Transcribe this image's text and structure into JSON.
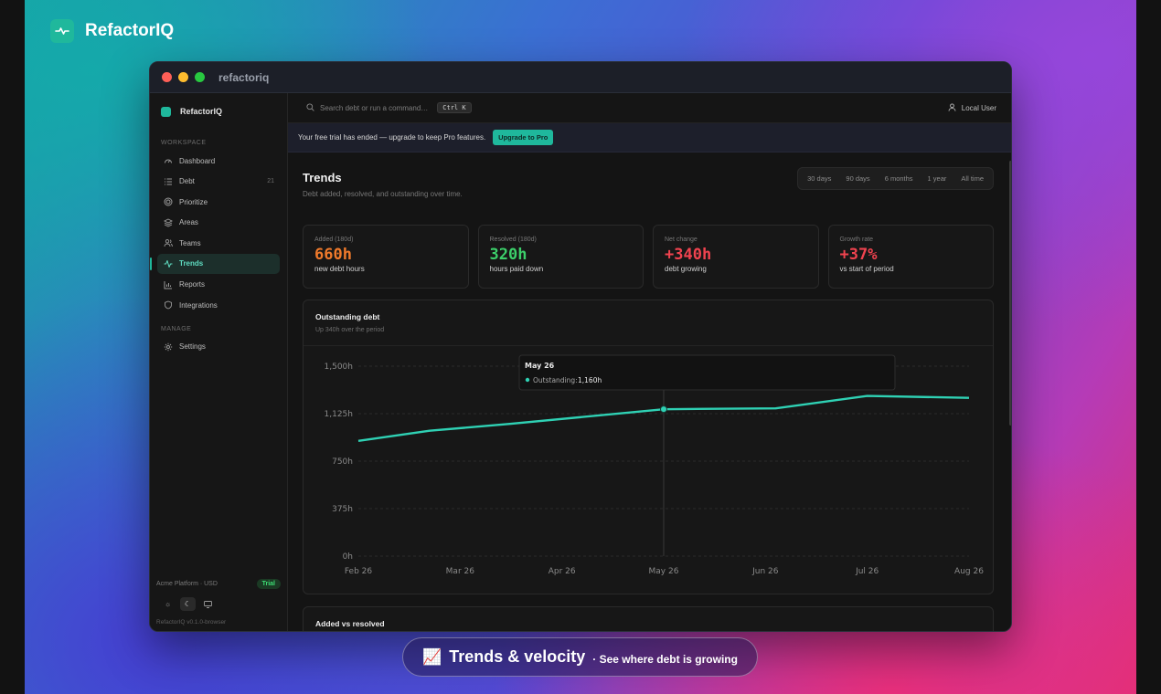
{
  "brand": {
    "name": "RefactorIQ"
  },
  "window": {
    "title": "refactoriq"
  },
  "sidebar": {
    "brand": "RefactorIQ",
    "sections": {
      "workspace": "WORKSPACE",
      "manage": "MANAGE"
    },
    "items": [
      {
        "label": "Dashboard",
        "icon": "gauge-icon"
      },
      {
        "label": "Debt",
        "icon": "list-icon",
        "count": "21"
      },
      {
        "label": "Prioritize",
        "icon": "target-icon"
      },
      {
        "label": "Areas",
        "icon": "layers-icon"
      },
      {
        "label": "Teams",
        "icon": "users-icon"
      },
      {
        "label": "Trends",
        "icon": "activity-icon",
        "active": true
      },
      {
        "label": "Reports",
        "icon": "bar-chart-icon"
      },
      {
        "label": "Integrations",
        "icon": "shield-icon"
      }
    ],
    "manage_items": [
      {
        "label": "Settings",
        "icon": "gear-icon"
      }
    ],
    "plan": "Acme Platform · USD",
    "plan_badge": "Trial",
    "version": "RefactorIQ v0.1.0-browser"
  },
  "topbar": {
    "search_placeholder": "Search debt or run a command…",
    "shortcut": "Ctrl K",
    "user": "Local User"
  },
  "banner": {
    "text": "Your free trial has ended — upgrade to keep Pro features.",
    "button": "Upgrade to Pro"
  },
  "page": {
    "title": "Trends",
    "subtitle": "Debt added, resolved, and outstanding over time.",
    "ranges": [
      "30 days",
      "90 days",
      "6 months",
      "1 year",
      "All time"
    ]
  },
  "stats": [
    {
      "label": "Added (180d)",
      "value": "660h",
      "sub": "new debt hours",
      "color": "#f07a2b"
    },
    {
      "label": "Resolved (180d)",
      "value": "320h",
      "sub": "hours paid down",
      "color": "#3ccf6a"
    },
    {
      "label": "Net change",
      "value": "+340h",
      "sub": "debt growing",
      "color": "#f0434f"
    },
    {
      "label": "Growth rate",
      "value": "+37%",
      "sub": "vs start of period",
      "color": "#f0434f"
    }
  ],
  "chart_card": {
    "title": "Outstanding debt",
    "subtitle": "Up 340h over the period",
    "tooltip": {
      "title": "May 26",
      "label": "Outstanding:",
      "value": "1,160h"
    }
  },
  "chart_data": {
    "type": "line",
    "categories": [
      "Feb 26",
      "Mar 26",
      "Apr 26",
      "May 26",
      "Jun 26",
      "Jul 26",
      "Aug 26"
    ],
    "series": [
      {
        "name": "Outstanding",
        "color": "#2fd1b4",
        "x": [
          0,
          0.7,
          1.5,
          3.0,
          4.1,
          5.0,
          6.0
        ],
        "values": [
          910,
          990,
          1045,
          1160,
          1167,
          1265,
          1250
        ]
      }
    ],
    "yticks": [
      "0h",
      "375h",
      "750h",
      "1,125h",
      "1,500h"
    ],
    "ylim": [
      0,
      1500
    ],
    "highlight_index": 3,
    "grid": true
  },
  "card2": {
    "title": "Added vs resolved"
  },
  "caption": {
    "emoji": "📈",
    "title": "Trends & velocity",
    "subtitle": "· See where debt is growing"
  }
}
